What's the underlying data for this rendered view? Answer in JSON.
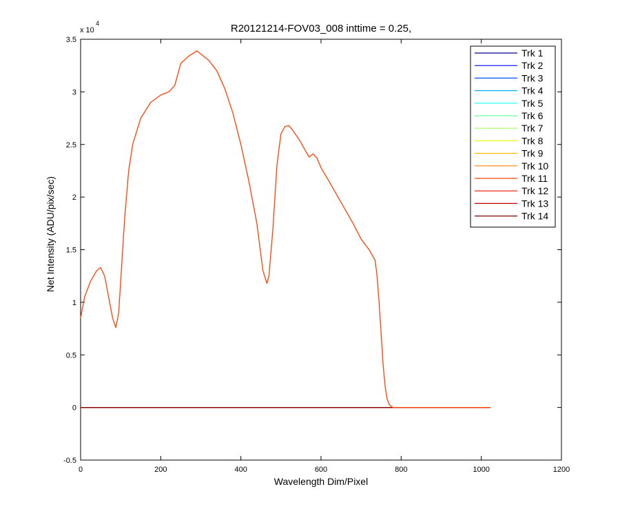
{
  "chart_data": {
    "type": "line",
    "title": "R20121214-FOV03_008 inttime = 0.25,",
    "xlabel": "Wavelength Dim/Pixel",
    "ylabel": "Net Intensity (ADU/pix/sec)",
    "y_multiplier": {
      "base": "x 10",
      "exponent": "4"
    },
    "xlim": [
      0,
      1200
    ],
    "ylim": [
      -5000,
      35000
    ],
    "x_ticks": [
      0,
      200,
      400,
      600,
      800,
      1000,
      1200
    ],
    "x_tick_labels": [
      "0",
      "200",
      "400",
      "600",
      "800",
      "1000",
      "1200"
    ],
    "y_ticks": [
      -5000,
      0,
      5000,
      10000,
      15000,
      20000,
      25000,
      30000,
      35000
    ],
    "y_tick_labels": [
      "-0.5",
      "0",
      "0.5",
      "1",
      "1.5",
      "2",
      "2.5",
      "3",
      "3.5"
    ],
    "grid": false,
    "legend_position": "top-right",
    "series": [
      {
        "name": "Trk 1",
        "color": "#00008f",
        "flat": true
      },
      {
        "name": "Trk 2",
        "color": "#0000ef",
        "flat": true
      },
      {
        "name": "Trk 3",
        "color": "#0050ff",
        "flat": true
      },
      {
        "name": "Trk 4",
        "color": "#00afff",
        "flat": true
      },
      {
        "name": "Trk 5",
        "color": "#10ffef",
        "flat": true
      },
      {
        "name": "Trk 6",
        "color": "#60ff9f",
        "flat": true
      },
      {
        "name": "Trk 7",
        "color": "#9fff60",
        "flat": true
      },
      {
        "name": "Trk 8",
        "color": "#efff10",
        "flat": true
      },
      {
        "name": "Trk 9",
        "color": "#ffbf00",
        "flat": true
      },
      {
        "name": "Trk 10",
        "color": "#ff8000",
        "flat": true
      },
      {
        "name": "Trk 11",
        "color": "#ff4000",
        "flat": true
      },
      {
        "name": "Trk 12",
        "color": "#f01000",
        "flat": true
      },
      {
        "name": "Trk 13",
        "color": "#c00000",
        "flat": true
      },
      {
        "name": "Trk 14",
        "color": "#800000",
        "flat": true
      }
    ],
    "signal_series": {
      "color": "#ff4000",
      "x": [
        0,
        10,
        25,
        40,
        50,
        60,
        70,
        80,
        88,
        95,
        100,
        110,
        120,
        130,
        150,
        175,
        200,
        220,
        235,
        250,
        270,
        290,
        300,
        320,
        340,
        360,
        380,
        400,
        420,
        440,
        455,
        465,
        470,
        480,
        490,
        500,
        510,
        520,
        530,
        545,
        560,
        570,
        580,
        590,
        600,
        620,
        650,
        680,
        700,
        720,
        735,
        740,
        745,
        750,
        755,
        760,
        765,
        770,
        775,
        780,
        790,
        800,
        850,
        900,
        1000,
        1023
      ],
      "y": [
        8500,
        10500,
        12000,
        13000,
        13300,
        12500,
        10500,
        8500,
        7600,
        9000,
        12000,
        18000,
        22500,
        25000,
        27500,
        29000,
        29700,
        30000,
        30600,
        32700,
        33400,
        33900,
        33600,
        33000,
        32000,
        30300,
        28000,
        25000,
        21500,
        17500,
        13000,
        11800,
        12500,
        17000,
        23000,
        26000,
        26700,
        26800,
        26300,
        25500,
        24500,
        23800,
        24100,
        23700,
        22800,
        21500,
        19500,
        17500,
        16000,
        15000,
        14000,
        12500,
        10000,
        7000,
        4000,
        2000,
        800,
        300,
        100,
        0,
        0,
        0,
        0,
        0,
        0,
        0
      ]
    }
  }
}
